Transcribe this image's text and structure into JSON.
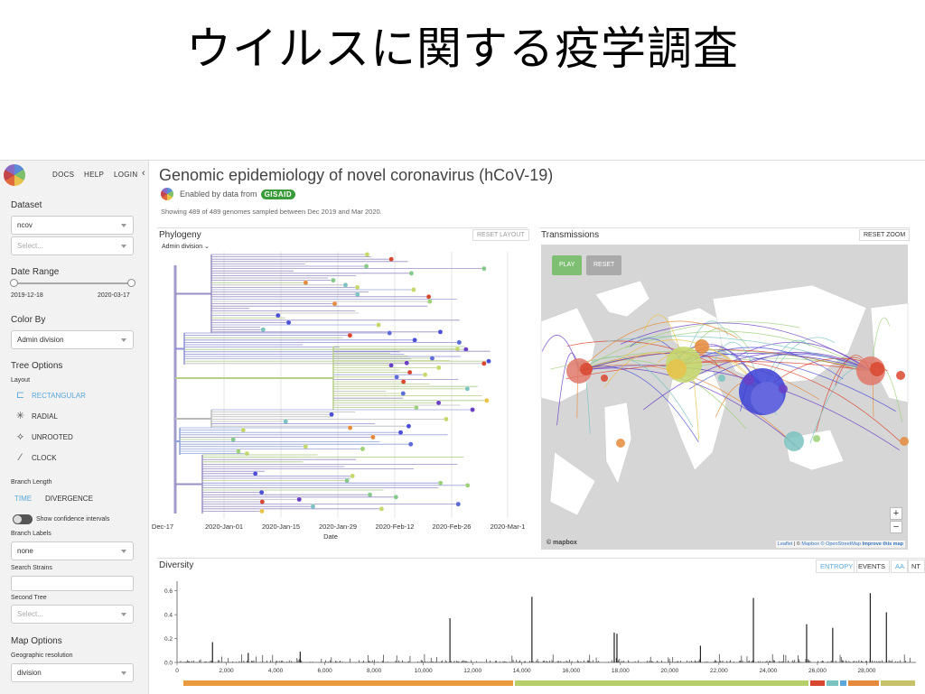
{
  "slide": {
    "title": "ウイルスに関する疫学調査"
  },
  "sidebar": {
    "nav": {
      "docs": "DOCS",
      "help": "HELP",
      "login": "LOGIN",
      "collapse": "‹"
    },
    "dataset": {
      "label": "Dataset",
      "value": "ncov",
      "placeholder": "Select..."
    },
    "date_range": {
      "label": "Date Range",
      "start": "2019-12-18",
      "end": "2020-03-17"
    },
    "color_by": {
      "label": "Color By",
      "value": "Admin division"
    },
    "tree_options": {
      "label": "Tree Options",
      "layout_label": "Layout",
      "layouts": [
        {
          "name": "RECTANGULAR",
          "icon": "rectangular-tree-icon",
          "active": true
        },
        {
          "name": "RADIAL",
          "icon": "radial-tree-icon",
          "active": false
        },
        {
          "name": "UNROOTED",
          "icon": "unrooted-tree-icon",
          "active": false
        },
        {
          "name": "CLOCK",
          "icon": "clock-tree-icon",
          "active": false
        }
      ],
      "branch_length_label": "Branch Length",
      "branch_length_options": [
        "TIME",
        "DIVERGENCE"
      ],
      "confidence_label": "Show confidence intervals",
      "branch_labels_label": "Branch Labels",
      "branch_labels_value": "none",
      "search_label": "Search Strains",
      "second_tree_label": "Second Tree",
      "second_tree_placeholder": "Select..."
    },
    "map_options": {
      "label": "Map Options",
      "geo_label": "Geographic resolution",
      "geo_value": "division"
    }
  },
  "main": {
    "title": "Genomic epidemiology of novel coronavirus (hCoV-19)",
    "enabled_by": "Enabled by data from",
    "gisaid": "GISAID",
    "summary": "Showing 489 of 489 genomes sampled between Dec 2019 and Mar 2020.",
    "phylogeny": {
      "title": "Phylogeny",
      "color_selector": "Admin division",
      "reset_layout": "RESET LAYOUT",
      "x_axis_label": "Date",
      "x_ticks": [
        "Dec-17",
        "2020-Jan-01",
        "2020-Jan-15",
        "2020-Jan-29",
        "2020-Feb-12",
        "2020-Feb-26",
        "2020-Mar-1"
      ]
    },
    "transmissions": {
      "title": "Transmissions",
      "reset_zoom": "RESET ZOOM",
      "play": "PLAY",
      "reset": "RESET",
      "zoom_in": "+",
      "zoom_out": "−",
      "mapbox": "© mapbox",
      "attribution_leaflet": "Leaflet",
      "attribution_sep": " | © ",
      "attribution_mapbox": "Mapbox",
      "attribution_osm": "© OpenStreetMap",
      "attribution_improve": "Improve this map"
    },
    "diversity": {
      "title": "Diversity",
      "tabs": [
        "ENTROPY",
        "EVENTS",
        "AA",
        "NT"
      ],
      "y_ticks": [
        "0.6",
        "0.4",
        "0.2",
        "0.0"
      ],
      "x_ticks": [
        "0",
        "2,000",
        "4,000",
        "6,000",
        "8,000",
        "10,000",
        "12,000",
        "14,000",
        "16,000",
        "18,000",
        "20,000",
        "22,000",
        "24,000",
        "26,000",
        "28,000"
      ]
    }
  },
  "chart_data": {
    "type": "bar",
    "title": "Diversity",
    "xlabel": "",
    "ylabel": "",
    "xlim": [
      0,
      30000
    ],
    "ylim": [
      0,
      0.65
    ],
    "peaks": [
      {
        "x": 1440,
        "y": 0.17
      },
      {
        "x": 2890,
        "y": 0.08
      },
      {
        "x": 5000,
        "y": 0.09
      },
      {
        "x": 11080,
        "y": 0.37
      },
      {
        "x": 14408,
        "y": 0.55
      },
      {
        "x": 17750,
        "y": 0.25
      },
      {
        "x": 17860,
        "y": 0.24
      },
      {
        "x": 21250,
        "y": 0.14
      },
      {
        "x": 23400,
        "y": 0.54
      },
      {
        "x": 25560,
        "y": 0.32
      },
      {
        "x": 26620,
        "y": 0.29
      },
      {
        "x": 28144,
        "y": 0.58
      },
      {
        "x": 28800,
        "y": 0.42
      }
    ],
    "colors": {
      "rectangular_active": "#5da8d9",
      "gisaid": "#3a9b3a",
      "play": "#7fbf74",
      "reset": "#aaaaaa"
    }
  }
}
